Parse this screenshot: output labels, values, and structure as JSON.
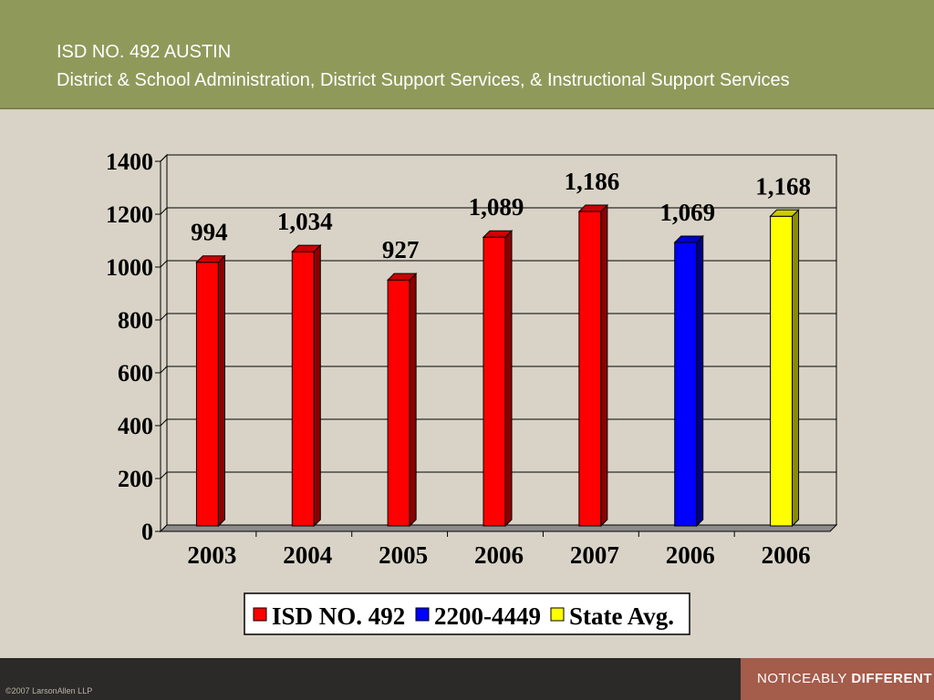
{
  "header": {
    "title_line1": "ISD NO. 492 AUSTIN",
    "title_line2": "District & School Administration, District Support Services, & Instructional Support Services"
  },
  "footer": {
    "copyright": "©2007 LarsonAllen LLP",
    "tagline_part1": "NOTICEABLY ",
    "tagline_part2": "DIFFERENT"
  },
  "colors": {
    "header_bg": "#8f9a5a",
    "slide_bg": "#d9d3c7",
    "footer_bg": "#2b2a28",
    "tagline_bg": "#a45c4b"
  },
  "chart_data": {
    "type": "bar",
    "categories": [
      "2003",
      "2004",
      "2005",
      "2006",
      "2007",
      "2006",
      "2006"
    ],
    "values": [
      994,
      1034,
      927,
      1089,
      1186,
      1069,
      1168
    ],
    "data_labels": [
      "994",
      "1,034",
      "927",
      "1,089",
      "1,186",
      "1,069",
      "1,168"
    ],
    "bar_series": [
      0,
      0,
      0,
      0,
      0,
      1,
      2
    ],
    "series": [
      {
        "name": "ISD NO. 492",
        "color": "#ff0000"
      },
      {
        "name": "2200-4449",
        "color": "#0000ff"
      },
      {
        "name": "State Avg.",
        "color": "#ffff00"
      }
    ],
    "ylim": [
      0,
      1400
    ],
    "yticks": [
      0,
      200,
      400,
      600,
      800,
      1000,
      1200,
      1400
    ],
    "grid": true,
    "legend_position": "bottom",
    "style": "3d"
  }
}
